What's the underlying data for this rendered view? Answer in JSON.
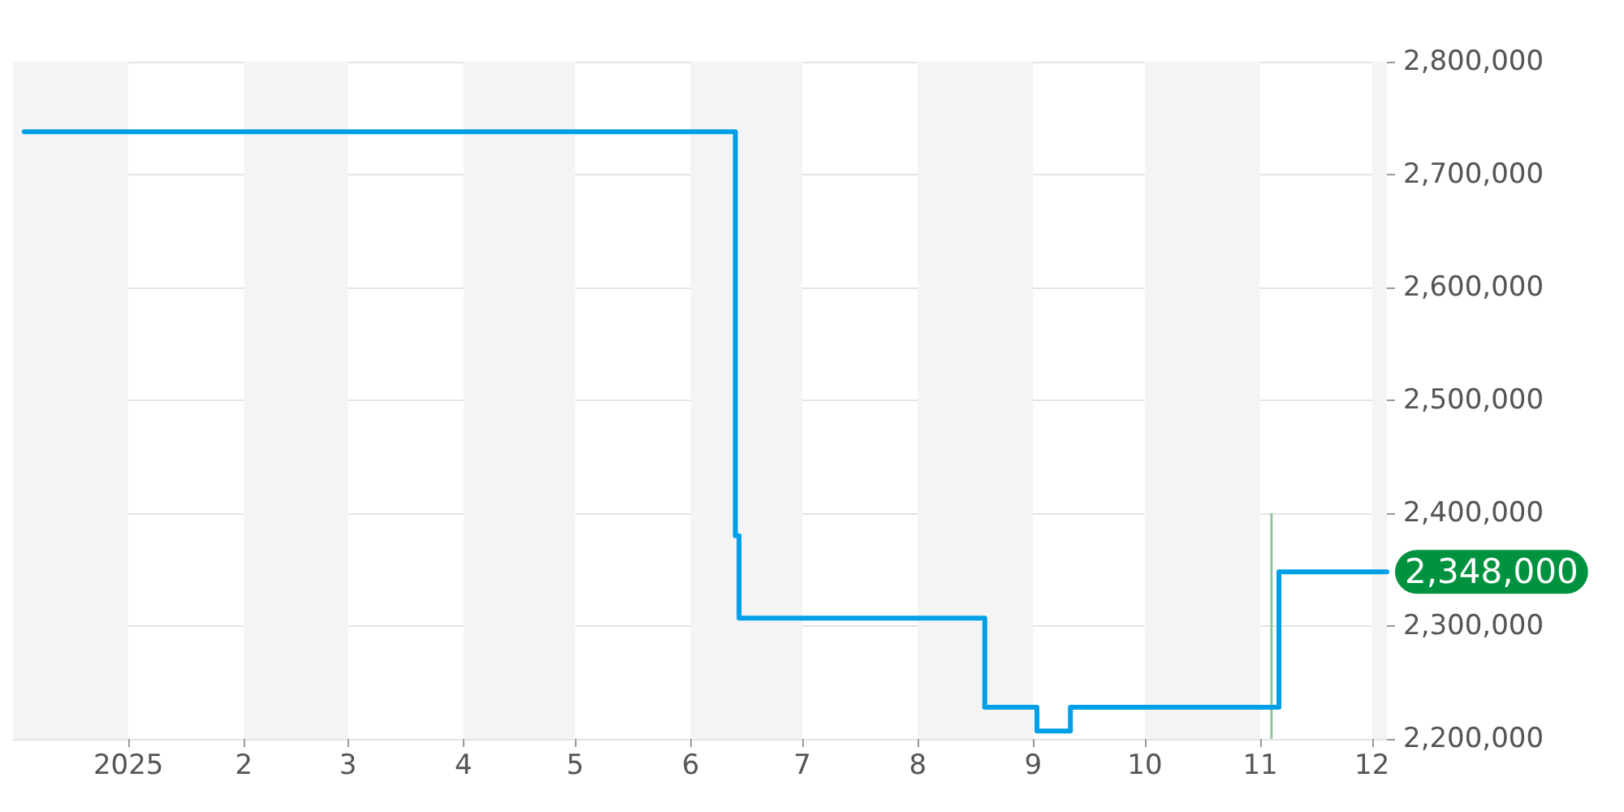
{
  "chart_data": {
    "type": "step",
    "series": [
      {
        "color": "#00a0e9",
        "x": [
          "2024-12-04",
          "2025-06-12",
          "2025-06-13",
          "2025-06-14",
          "2025-08-18",
          "2025-08-19",
          "2025-09-01",
          "2025-09-02",
          "2025-09-10",
          "2025-09-11",
          "2025-11-05",
          "2025-11-06",
          "2025-12-05"
        ],
        "values": [
          2738000,
          2738000,
          2380000,
          2307000,
          2307000,
          2228000,
          2228000,
          2207000,
          2207000,
          2228000,
          2228000,
          2348000,
          2348000
        ],
        "value_labels": [
          null,
          null,
          null,
          null,
          null,
          null,
          null,
          null,
          null,
          null,
          null,
          null,
          "2,348,000"
        ]
      },
      {
        "type": "bar",
        "color": "#8fc79a",
        "x": [
          "2025-11-04"
        ],
        "values": [
          2400000
        ]
      }
    ],
    "xlim": [
      "2024-12-01",
      "2025-12-05"
    ],
    "xticks": [
      {
        "value": "2025-01-01",
        "label": "2025"
      },
      {
        "value": "2025-02-01",
        "label": "2"
      },
      {
        "value": "2025-03-01",
        "label": "3"
      },
      {
        "value": "2025-04-01",
        "label": "4"
      },
      {
        "value": "2025-05-01",
        "label": "5"
      },
      {
        "value": "2025-06-01",
        "label": "6"
      },
      {
        "value": "2025-07-01",
        "label": "7"
      },
      {
        "value": "2025-08-01",
        "label": "8"
      },
      {
        "value": "2025-09-01",
        "label": "9"
      },
      {
        "value": "2025-10-01",
        "label": "10"
      },
      {
        "value": "2025-11-01",
        "label": "11"
      },
      {
        "value": "2025-12-01",
        "label": "12"
      }
    ],
    "ylim": [
      2200000,
      2800000
    ],
    "yticks": [
      {
        "value": 2200000,
        "label": "2,200,000"
      },
      {
        "value": 2300000,
        "label": "2,300,000"
      },
      {
        "value": 2400000,
        "label": "2,400,000"
      },
      {
        "value": 2500000,
        "label": "2,500,000"
      },
      {
        "value": 2600000,
        "label": "2,600,000"
      },
      {
        "value": 2700000,
        "label": "2,700,000"
      },
      {
        "value": 2800000,
        "label": "2,800,000"
      }
    ],
    "bands": [
      {
        "axis": "x",
        "from": "2024-12-01",
        "to": "2025-01-01",
        "color": "#f4f4f4"
      },
      {
        "axis": "x",
        "from": "2025-02-01",
        "to": "2025-03-01",
        "color": "#f4f4f4"
      },
      {
        "axis": "x",
        "from": "2025-04-01",
        "to": "2025-05-01",
        "color": "#f4f4f4"
      },
      {
        "axis": "x",
        "from": "2025-06-01",
        "to": "2025-07-01",
        "color": "#f4f4f4"
      },
      {
        "axis": "x",
        "from": "2025-08-01",
        "to": "2025-09-01",
        "color": "#f4f4f4"
      },
      {
        "axis": "x",
        "from": "2025-10-01",
        "to": "2025-11-01",
        "color": "#f4f4f4"
      },
      {
        "axis": "x",
        "from": "2025-12-01",
        "to": "2025-12-05",
        "color": "#f4f4f4"
      }
    ],
    "grid": "y"
  }
}
